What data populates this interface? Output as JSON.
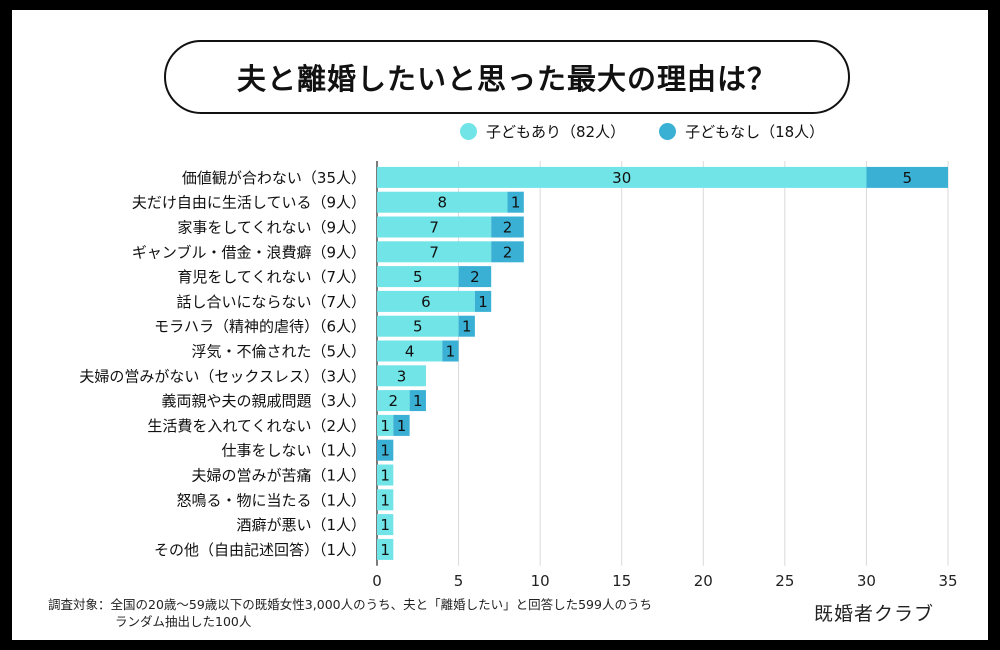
{
  "title": "夫と離婚したいと思った最大の理由は？",
  "legend": [
    {
      "label": "子どもあり（82人）",
      "color": "#71E4E8"
    },
    {
      "label": "子どもなし（18人）",
      "color": "#3AB1D4"
    }
  ],
  "chart_data": {
    "type": "bar",
    "orientation": "horizontal",
    "stacked": true,
    "title": "夫と離婚したいと思った最大の理由は？",
    "categories": [
      "価値観が合わない（35人）",
      "夫だけ自由に生活している（9人）",
      "家事をしてくれない（9人）",
      "ギャンブル・借金・浪費癖（9人）",
      "育児をしてくれない（7人）",
      "話し合いにならない（7人）",
      "モラハラ（精神的虐待）（6人）",
      "浮気・不倫された（5人）",
      "夫婦の営みがない（セックスレス）（3人）",
      "義両親や夫の親戚問題（3人）",
      "生活費を入れてくれない（2人）",
      "仕事をしない（1人）",
      "夫婦の営みが苦痛（1人）",
      "怒鳴る・物に当たる（1人）",
      "酒癖が悪い（1人）",
      "その他（自由記述回答）（1人）"
    ],
    "series": [
      {
        "name": "子どもあり（82人）",
        "color": "#71E4E8",
        "values": [
          30,
          8,
          7,
          7,
          5,
          6,
          5,
          4,
          3,
          2,
          1,
          0,
          1,
          1,
          1,
          1
        ]
      },
      {
        "name": "子どもなし（18人）",
        "color": "#3AB1D4",
        "values": [
          5,
          1,
          2,
          2,
          2,
          1,
          1,
          1,
          0,
          1,
          1,
          1,
          0,
          0,
          0,
          0
        ]
      }
    ],
    "xlim": [
      0,
      35
    ],
    "xticks": [
      0,
      5,
      10,
      15,
      20,
      25,
      30,
      35
    ],
    "grid": true,
    "legend_position": "top"
  },
  "footnote": {
    "line1": "調査対象：全国の20歳〜59歳以下の既婚女性3,000人のうち、夫と「離婚したい」と回答した599人のうち",
    "line2": "ランダム抽出した100人"
  },
  "brand": "既婚者クラブ"
}
